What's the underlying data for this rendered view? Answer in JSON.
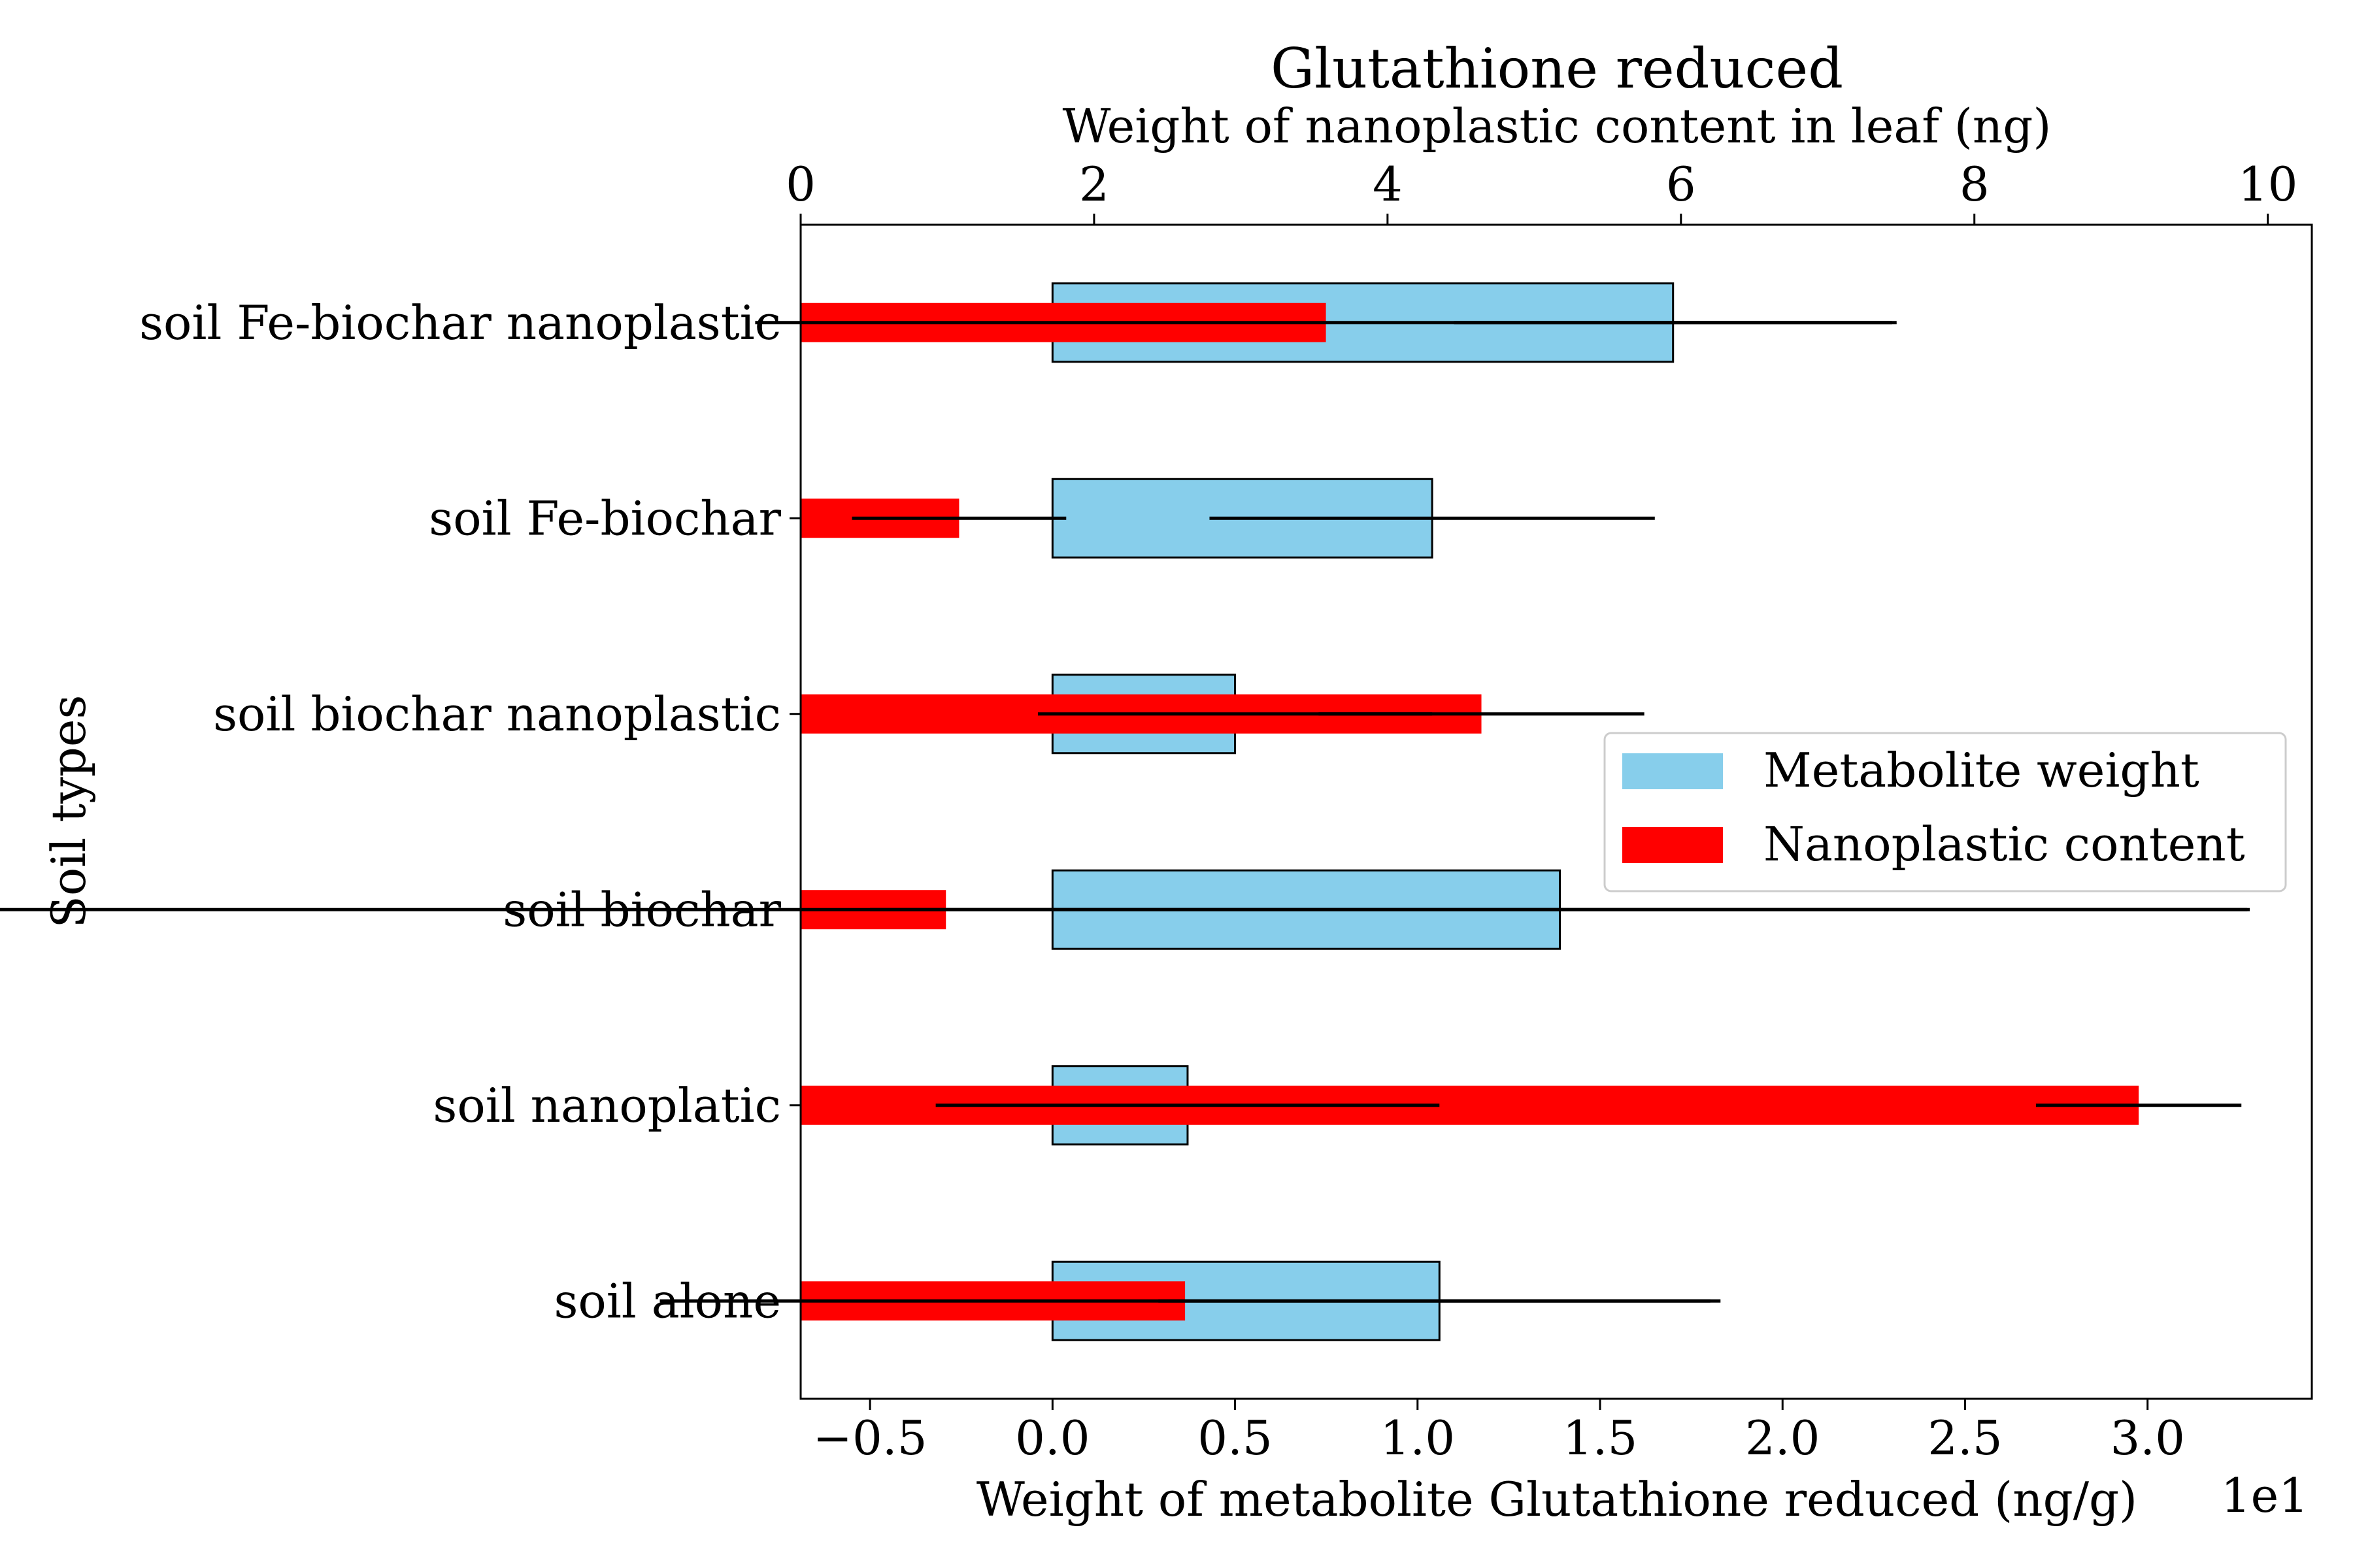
{
  "chart_data": {
    "type": "bar",
    "orientation": "horizontal",
    "title": "Glutathione reduced",
    "title_color": "#a52a2a",
    "ylabel": "Soil types",
    "categories": [
      "soil Fe-biochar nanoplastic",
      "soil Fe-biochar",
      "soil biochar nanoplastic",
      "soil biochar",
      "soil nanoplatic",
      "soil alone"
    ],
    "bottom_axis": {
      "label": "Weight of metabolite Glutathione reduced (ng/g)",
      "scale_note": "1e1",
      "range": [
        -0.69,
        3.45
      ],
      "ticks": [
        -0.5,
        0.0,
        0.5,
        1.0,
        1.5,
        2.0,
        2.5,
        3.0
      ],
      "tick_labels": [
        "−0.5",
        "0.0",
        "0.5",
        "1.0",
        "1.5",
        "2.0",
        "2.5",
        "3.0"
      ]
    },
    "top_axis": {
      "label": "Weight of nanoplastic content in leaf (ng)",
      "range": [
        0,
        10.3
      ],
      "ticks": [
        0,
        2,
        4,
        6,
        8,
        10
      ],
      "tick_labels": [
        "0",
        "2",
        "4",
        "6",
        "8",
        "10"
      ]
    },
    "series": [
      {
        "name": "Metabolite weight",
        "axis": "bottom",
        "color": "#87ceeb",
        "values": [
          1.7,
          1.04,
          0.5,
          1.39,
          0.37,
          1.06
        ],
        "errors": [
          0.6,
          0.61,
          0.54,
          1.89,
          0.69,
          0.77
        ]
      },
      {
        "name": "Nanoplastic content",
        "axis": "top",
        "color": "#ff0000",
        "values": [
          3.58,
          1.08,
          4.64,
          0.99,
          9.12,
          2.62
        ],
        "errors": [
          3.89,
          0.73,
          1.11,
          8.87,
          0.7,
          3.58
        ]
      }
    ],
    "legend": {
      "placement": "center-right"
    },
    "grid": false
  }
}
